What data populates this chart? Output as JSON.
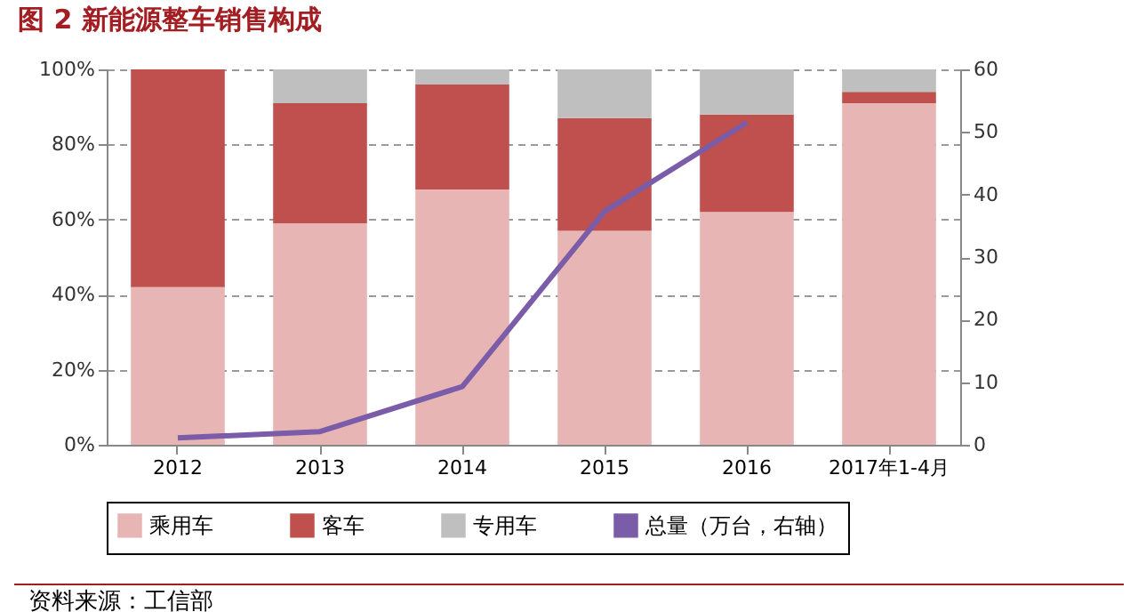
{
  "chart_data": {
    "type": "bar",
    "title": "图 2  新能源整车销售构成",
    "categories": [
      "2012",
      "2013",
      "2014",
      "2015",
      "2016",
      "2017年1-4月"
    ],
    "stacked": true,
    "series": [
      {
        "name": "乘用车",
        "color": "#e8b5b5",
        "values": [
          42,
          59,
          68,
          57,
          62,
          91
        ]
      },
      {
        "name": "客车",
        "color": "#c0504d",
        "values": [
          58,
          32,
          28,
          30,
          26,
          3
        ]
      },
      {
        "name": "专用车",
        "color": "#bfbfbf",
        "values": [
          0,
          9,
          4,
          13,
          12,
          6
        ]
      },
      {
        "name": "总量（万台，右轴）",
        "type": "line",
        "axis": "y2",
        "color": "#7a5ca8",
        "values": [
          1.1,
          2.1,
          9.3,
          37.3,
          51.5,
          null
        ]
      }
    ],
    "ylim": [
      0,
      100
    ],
    "yticks": [
      {
        "value": 0,
        "label": "0%"
      },
      {
        "value": 20,
        "label": "20%"
      },
      {
        "value": 40,
        "label": "40%"
      },
      {
        "value": 60,
        "label": "60%"
      },
      {
        "value": 80,
        "label": "80%"
      },
      {
        "value": 100,
        "label": "100%"
      }
    ],
    "y2lim": [
      0,
      60
    ],
    "y2ticks": [
      0,
      10,
      20,
      30,
      40,
      50,
      60
    ],
    "grid": "y",
    "legend": "bottom",
    "annotations": [
      "资料来源：工信部"
    ]
  }
}
